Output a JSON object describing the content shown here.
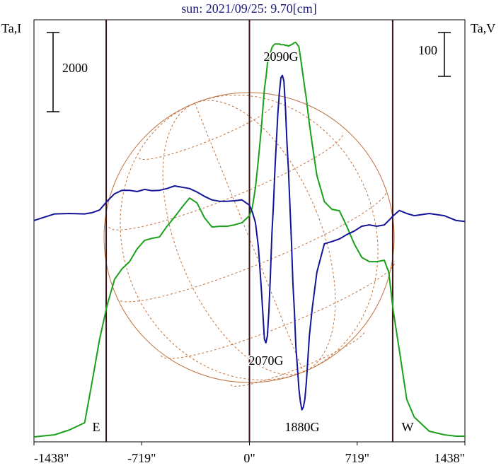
{
  "chart_data": {
    "type": "line",
    "title": "sun: 2021/09/25: 9.70[cm]",
    "y_label": "Ta,I",
    "y2_label": "Ta,V",
    "xlim": [
      -1438,
      1438
    ],
    "xticks": [
      {
        "value": -1438,
        "label": "-1438\""
      },
      {
        "value": -719,
        "label": "-719\""
      },
      {
        "value": 0,
        "label": "0\""
      },
      {
        "value": 719,
        "label": "719\""
      },
      {
        "value": 1438,
        "label": "1438\""
      }
    ],
    "ylim": [
      -125,
      10540
    ],
    "y2lim": [
      -505,
      458
    ],
    "vlines": [
      -956,
      0,
      956
    ],
    "scale_bars": [
      {
        "axis": "y",
        "value": 2000
      },
      {
        "axis": "y2",
        "value": 100
      }
    ],
    "annotations": [
      "2090G",
      "2070G",
      "1880G",
      "E",
      "W"
    ],
    "series": [
      {
        "name": "Ta,I",
        "color": "#1aa01a",
        "axis": "y",
        "x": [
          -1438,
          -1300,
          -1200,
          -1100,
          -1050,
          -1000,
          -950,
          -900,
          -850,
          -800,
          -750,
          -700,
          -650,
          -600,
          -550,
          -500,
          -450,
          -400,
          -350,
          -300,
          -250,
          -200,
          -150,
          -100,
          -50,
          0,
          20,
          40,
          60,
          80,
          100,
          110,
          120,
          130,
          140,
          150,
          160,
          170,
          180,
          190,
          200,
          210,
          220,
          230,
          240,
          250,
          260,
          270,
          280,
          290,
          300,
          310,
          320,
          330,
          340,
          350,
          360,
          370,
          380,
          400,
          420,
          450,
          500,
          550,
          600,
          650,
          700,
          750,
          800,
          850,
          900,
          930,
          960,
          1000,
          1050,
          1100,
          1200,
          1300,
          1380,
          1438
        ],
        "values": [
          0,
          54,
          179,
          357,
          1393,
          2464,
          3321,
          3982,
          4250,
          4429,
          4750,
          4964,
          5018,
          5054,
          5321,
          5554,
          5804,
          6036,
          5911,
          5536,
          5304,
          5321,
          5321,
          5357,
          5411,
          5589,
          5804,
          6304,
          7018,
          7821,
          8804,
          9071,
          9429,
          9607,
          9696,
          9839,
          9893,
          9929,
          9929,
          9929,
          9929,
          9911,
          9911,
          9911,
          9893,
          9893,
          9875,
          9893,
          9911,
          9929,
          9964,
          9964,
          9911,
          9857,
          9607,
          9339,
          9071,
          8804,
          8536,
          7911,
          7375,
          6607,
          5946,
          5750,
          5714,
          5321,
          4875,
          4536,
          4429,
          4429,
          4464,
          4161,
          3179,
          2196,
          946,
          500,
          143,
          54,
          18,
          18
        ]
      },
      {
        "name": "Ta,V",
        "color": "#141496",
        "axis": "y2",
        "x": [
          -1438,
          -1300,
          -1200,
          -1100,
          -1050,
          -1000,
          -950,
          -900,
          -850,
          -800,
          -750,
          -700,
          -650,
          -600,
          -550,
          -500,
          -450,
          -400,
          -350,
          -300,
          -250,
          -200,
          -150,
          -100,
          -50,
          0,
          20,
          40,
          60,
          80,
          100,
          110,
          120,
          130,
          140,
          150,
          160,
          170,
          180,
          190,
          200,
          210,
          220,
          230,
          240,
          250,
          260,
          270,
          280,
          290,
          300,
          310,
          320,
          330,
          340,
          350,
          360,
          370,
          380,
          400,
          420,
          450,
          500,
          550,
          600,
          650,
          700,
          750,
          800,
          850,
          900,
          930,
          960,
          1000,
          1050,
          1100,
          1200,
          1300,
          1380,
          1438
        ],
        "values": [
          0,
          15,
          16,
          15,
          18,
          24,
          44,
          61,
          69,
          69,
          66,
          71,
          68,
          69,
          73,
          79,
          76,
          73,
          65,
          55,
          47,
          44,
          44,
          45,
          47,
          35,
          19,
          -5,
          -61,
          -158,
          -271,
          -279,
          -263,
          -206,
          -126,
          -29,
          35,
          116,
          181,
          245,
          294,
          326,
          331,
          318,
          261,
          181,
          116,
          35,
          -45,
          -142,
          -206,
          -287,
          -335,
          -384,
          -413,
          -432,
          -426,
          -408,
          -368,
          -263,
          -198,
          -118,
          -53,
          -48,
          -42,
          -32,
          -24,
          -13,
          -10,
          -13,
          -10,
          0,
          11,
          23,
          16,
          11,
          16,
          11,
          0,
          -2
        ]
      }
    ]
  }
}
